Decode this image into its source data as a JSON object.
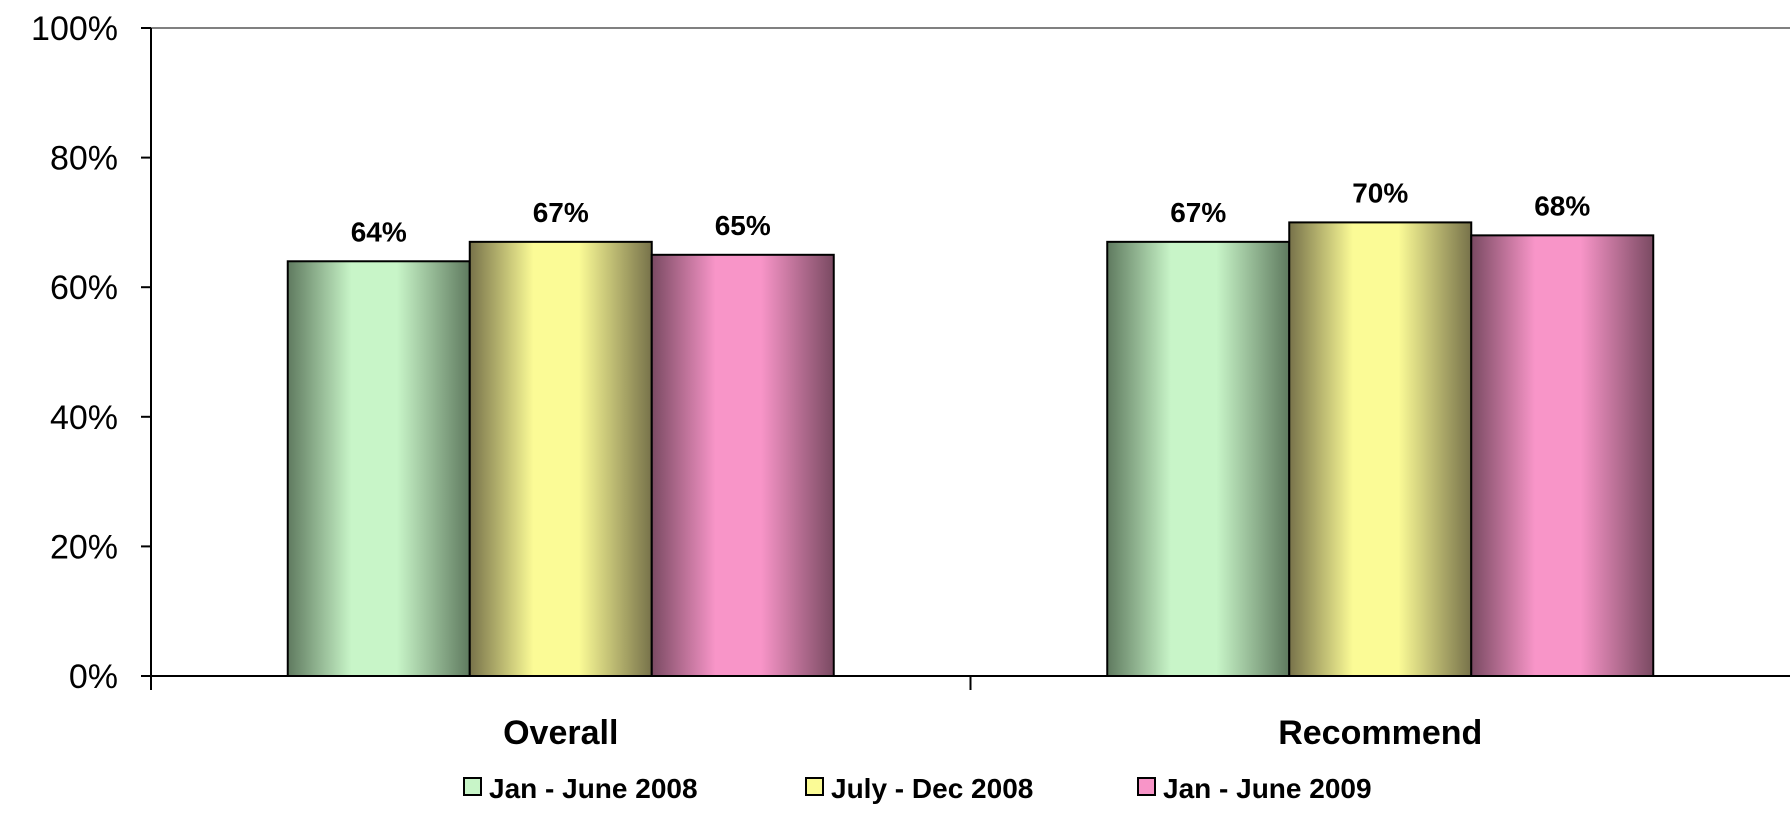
{
  "chart_data": {
    "type": "bar",
    "title": "",
    "xlabel": "",
    "ylabel": "",
    "categories": [
      "Overall",
      "Recommend"
    ],
    "series": [
      {
        "name": "Jan - June 2008",
        "values": [
          64,
          67
        ],
        "color": "#c8f5c8",
        "edge": "#5f7a5f"
      },
      {
        "name": "July - Dec 2008",
        "values": [
          67,
          70
        ],
        "color": "#fbfb96",
        "edge": "#77724a"
      },
      {
        "name": "Jan - June 2009",
        "values": [
          65,
          68
        ],
        "color": "#f895c8",
        "edge": "#7a4a62"
      }
    ],
    "value_suffix": "%",
    "yticks": [
      0,
      20,
      40,
      60,
      80,
      100
    ],
    "ytick_labels": [
      "0%",
      "20%",
      "40%",
      "60%",
      "80%",
      "100%"
    ],
    "ylim": [
      0,
      100
    ],
    "grid": false,
    "legend_position": "bottom"
  }
}
